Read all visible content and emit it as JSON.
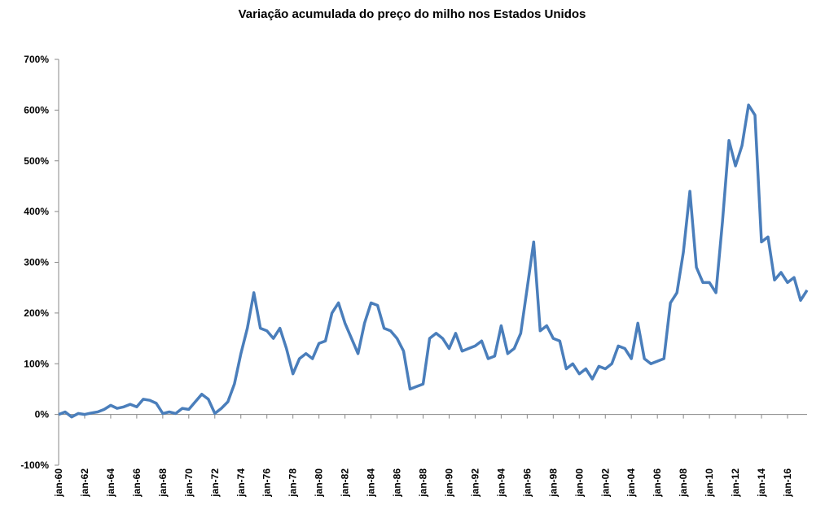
{
  "chart_data": {
    "type": "line",
    "title": "Variação acumulada do preço do milho nos Estados Unidos",
    "categories": [
      "jan-60",
      null,
      null,
      null,
      "jan-62",
      null,
      null,
      null,
      "jan-64",
      null,
      null,
      null,
      "jan-66",
      null,
      null,
      null,
      "jan-68",
      null,
      null,
      null,
      "jan-70",
      null,
      null,
      null,
      "jan-72",
      null,
      null,
      null,
      "jan-74",
      null,
      null,
      null,
      "jan-76",
      null,
      null,
      null,
      "jan-78",
      null,
      null,
      null,
      "jan-80",
      null,
      null,
      null,
      "jan-82",
      null,
      null,
      null,
      "jan-84",
      null,
      null,
      null,
      "jan-86",
      null,
      null,
      null,
      "jan-88",
      null,
      null,
      null,
      "jan-90",
      null,
      null,
      null,
      "jan-92",
      null,
      null,
      null,
      "jan-94",
      null,
      null,
      null,
      "jan-96",
      null,
      null,
      null,
      "jan-98",
      null,
      null,
      null,
      "jan-00",
      null,
      null,
      null,
      "jan-02",
      null,
      null,
      null,
      "jan-04",
      null,
      null,
      null,
      "jan-06",
      null,
      null,
      null,
      "jan-08",
      null,
      null,
      null,
      "jan-10",
      null,
      null,
      null,
      "jan-12",
      null,
      null,
      null,
      "jan-14",
      null,
      null,
      null,
      "jan-16",
      null,
      null,
      null
    ],
    "series": [
      {
        "color": "#4a7ebb",
        "values": [
          0,
          5,
          -5,
          2,
          0,
          3,
          5,
          10,
          18,
          12,
          15,
          20,
          15,
          30,
          28,
          22,
          2,
          5,
          2,
          12,
          10,
          25,
          40,
          30,
          2,
          12,
          25,
          60,
          120,
          170,
          240,
          170,
          165,
          150,
          170,
          130,
          80,
          110,
          120,
          110,
          140,
          145,
          200,
          220,
          180,
          150,
          120,
          180,
          220,
          215,
          170,
          165,
          150,
          125,
          50,
          55,
          60,
          150,
          160,
          150,
          130,
          160,
          125,
          130,
          135,
          145,
          110,
          115,
          175,
          120,
          130,
          160,
          250,
          340,
          165,
          175,
          150,
          145,
          90,
          100,
          80,
          90,
          70,
          95,
          90,
          100,
          135,
          130,
          110,
          180,
          110,
          100,
          105,
          110,
          220,
          240,
          320,
          440,
          290,
          260,
          260,
          240,
          380,
          540,
          490,
          530,
          610,
          590,
          340,
          350,
          265,
          280,
          260,
          270,
          225,
          245
        ]
      }
    ],
    "ylim": [
      -100,
      700
    ],
    "yticks": [
      {
        "value": -100,
        "label": "-100%"
      },
      {
        "value": 0,
        "label": "0%"
      },
      {
        "value": 100,
        "label": "100%"
      },
      {
        "value": 200,
        "label": "200%"
      },
      {
        "value": 300,
        "label": "300%"
      },
      {
        "value": 400,
        "label": "400%"
      },
      {
        "value": 500,
        "label": "500%"
      },
      {
        "value": 600,
        "label": "600%"
      },
      {
        "value": 700,
        "label": "700%"
      }
    ]
  }
}
